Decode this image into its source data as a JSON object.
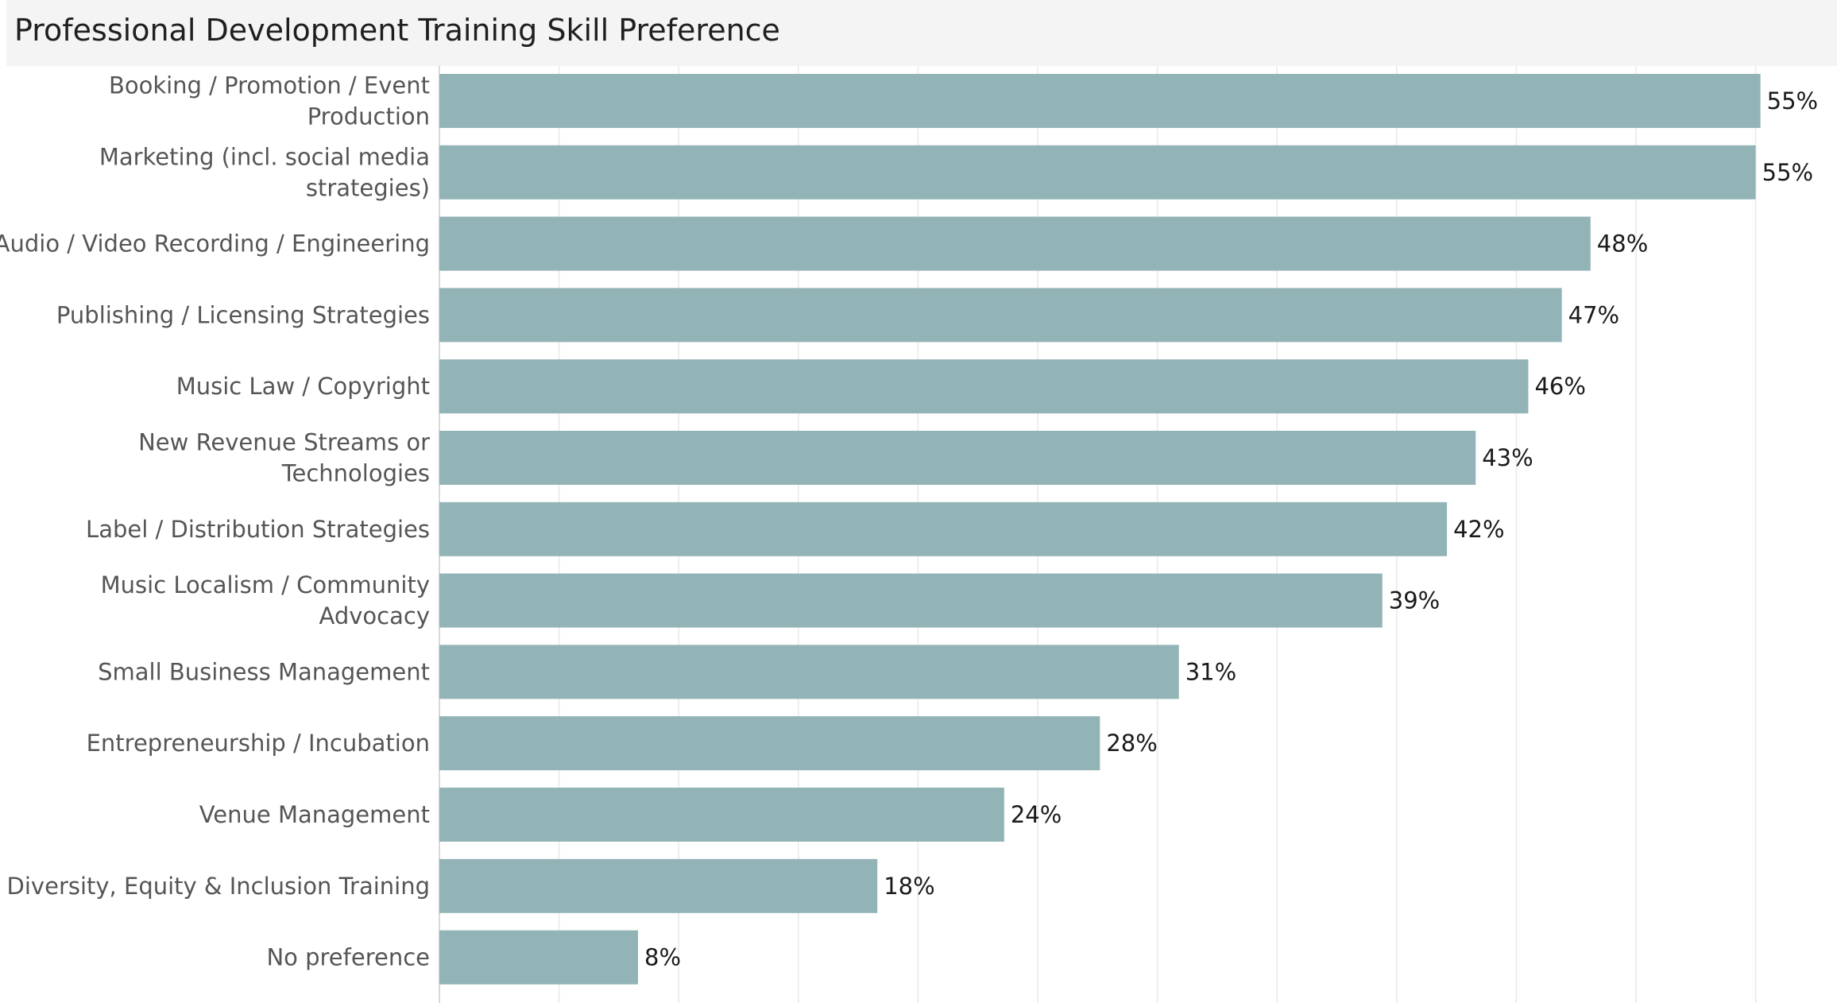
{
  "chart_data": {
    "type": "bar",
    "orientation": "horizontal",
    "title": "Professional Development Training Skill Preference",
    "categories": [
      [
        "Booking / Promotion / Event",
        "Production"
      ],
      [
        "Marketing (incl. social media",
        "strategies)"
      ],
      [
        "Audio / Video Recording / Engineering"
      ],
      [
        "Publishing / Licensing Strategies"
      ],
      [
        "Music Law / Copyright"
      ],
      [
        "New Revenue Streams or",
        "Technologies"
      ],
      [
        "Label / Distribution Strategies"
      ],
      [
        "Music Localism / Community",
        "Advocacy"
      ],
      [
        "Small Business Management"
      ],
      [
        "Entrepreneurship / Incubation"
      ],
      [
        "Venue Management"
      ],
      [
        "Diversity, Equity & Inclusion Training"
      ],
      [
        "No preference"
      ]
    ],
    "values": [
      55.2,
      55.0,
      48.1,
      46.9,
      45.5,
      43.3,
      42.1,
      39.4,
      30.9,
      27.6,
      23.6,
      18.3,
      8.3
    ],
    "value_labels": [
      "55%",
      "55%",
      "48%",
      "47%",
      "46%",
      "43%",
      "42%",
      "39%",
      "31%",
      "28%",
      "24%",
      "18%",
      "8%"
    ],
    "xlim": [
      0,
      58
    ],
    "grid": true,
    "colors": {
      "bar": "#93b4b6",
      "grid": "#e9e9e9",
      "axis": "#d9d9d9"
    }
  }
}
